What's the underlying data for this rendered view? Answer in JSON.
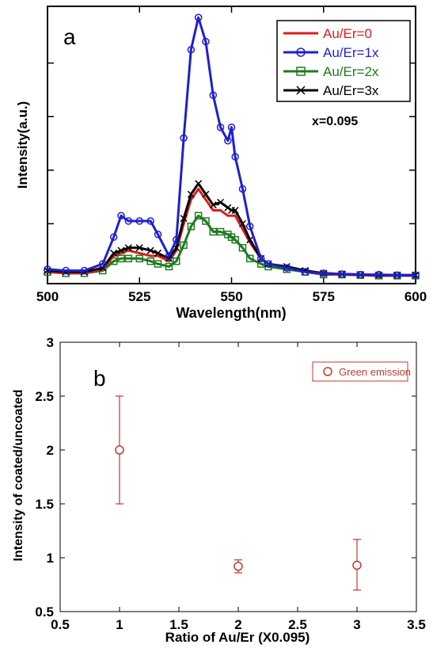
{
  "chart_data": [
    {
      "panel_label": "a",
      "type": "line",
      "xlabel": "Wavelength(nm)",
      "ylabel": "Intensity(a.u.)",
      "xlim": [
        500,
        600
      ],
      "ylim": [
        0,
        1.0
      ],
      "xticks": [
        "500",
        "525",
        "550",
        "575",
        "600"
      ],
      "yticks_labeled": false,
      "annotation": "x=0.095",
      "legend_position": "top-right",
      "x": [
        500,
        505,
        510,
        515,
        518,
        520,
        522,
        525,
        528,
        530,
        533,
        535,
        537,
        539,
        541,
        543,
        545,
        547,
        549,
        550,
        551,
        553,
        555,
        558,
        560,
        565,
        570,
        575,
        580,
        585,
        590,
        595,
        600
      ],
      "series": [
        {
          "name": "Au/Er=0",
          "color": "#e01b1b",
          "marker": "none",
          "values": [
            0.02,
            0.015,
            0.015,
            0.03,
            0.08,
            0.09,
            0.1,
            0.09,
            0.08,
            0.08,
            0.06,
            0.1,
            0.2,
            0.29,
            0.33,
            0.29,
            0.25,
            0.25,
            0.23,
            0.23,
            0.23,
            0.18,
            0.13,
            0.07,
            0.05,
            0.035,
            0.02,
            0.012,
            0.01,
            0.008,
            0.006,
            0.006,
            0.006
          ]
        },
        {
          "name": "Au/Er=1x",
          "color": "#1f1fd0",
          "marker": "circle",
          "values": [
            0.03,
            0.025,
            0.025,
            0.05,
            0.15,
            0.23,
            0.21,
            0.21,
            0.21,
            0.16,
            0.08,
            0.14,
            0.52,
            0.85,
            0.97,
            0.88,
            0.68,
            0.56,
            0.51,
            0.56,
            0.45,
            0.33,
            0.19,
            0.07,
            0.05,
            0.035,
            0.02,
            0.015,
            0.012,
            0.01,
            0.01,
            0.008,
            0.008
          ]
        },
        {
          "name": "Au/Er=2x",
          "color": "#1f7a1f",
          "marker": "square",
          "values": [
            0.02,
            0.015,
            0.015,
            0.025,
            0.06,
            0.07,
            0.07,
            0.07,
            0.06,
            0.05,
            0.04,
            0.06,
            0.12,
            0.19,
            0.23,
            0.21,
            0.17,
            0.17,
            0.16,
            0.15,
            0.14,
            0.11,
            0.07,
            0.05,
            0.04,
            0.03,
            0.02,
            0.01,
            0.01,
            0.008,
            0.006,
            0.006,
            0.006
          ]
        },
        {
          "name": "Au/Er=3x",
          "color": "#000000",
          "marker": "x",
          "values": [
            0.025,
            0.02,
            0.02,
            0.035,
            0.09,
            0.1,
            0.11,
            0.11,
            0.1,
            0.09,
            0.07,
            0.11,
            0.22,
            0.31,
            0.35,
            0.31,
            0.27,
            0.28,
            0.26,
            0.25,
            0.25,
            0.2,
            0.14,
            0.07,
            0.05,
            0.04,
            0.025,
            0.015,
            0.012,
            0.01,
            0.008,
            0.008,
            0.008
          ]
        }
      ]
    },
    {
      "panel_label": "b",
      "type": "scatter",
      "xlabel": "Ratio of Au/Er (X0.095)",
      "ylabel": "Intensity of coated/uncoated",
      "xlim": [
        0.5,
        3.5
      ],
      "ylim": [
        0.5,
        3.0
      ],
      "xticks": [
        "0.5",
        "1",
        "1.5",
        "2",
        "2.5",
        "3",
        "3.5"
      ],
      "yticks": [
        "0.5",
        "1",
        "1.5",
        "2",
        "2.5",
        "3"
      ],
      "legend_position": "top-right",
      "series": [
        {
          "name": "Green emission",
          "color": "#c0392b",
          "marker": "circle",
          "x": [
            1,
            2,
            3
          ],
          "values": [
            2.0,
            0.92,
            0.93
          ],
          "error_low": [
            1.5,
            0.86,
            0.7
          ],
          "error_high": [
            2.5,
            0.98,
            1.17
          ]
        }
      ]
    }
  ]
}
